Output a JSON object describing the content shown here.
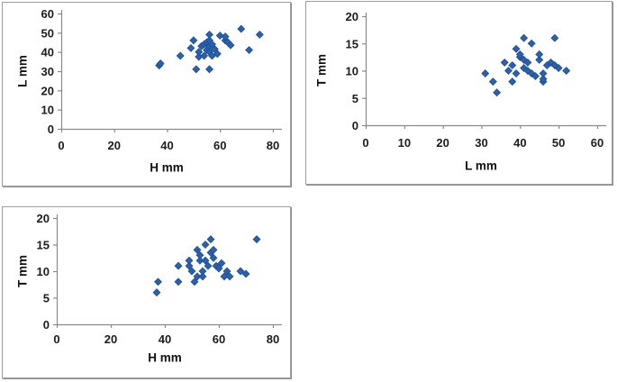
{
  "style": {
    "marker_fill": "#2a61ae",
    "marker_stroke": "#1e4e90",
    "axis_color": "#8a8a8a",
    "label_color": "#1c1c1c",
    "panel_border": "#9e9e9e",
    "background": "#ffffff"
  },
  "chart_data": [
    {
      "id": "l-vs-h",
      "type": "scatter",
      "title": "",
      "xlabel": "H mm",
      "ylabel": "L mm",
      "xlim": [
        0,
        80
      ],
      "ylim": [
        0,
        60
      ],
      "xticks": [
        0,
        20,
        40,
        60,
        80
      ],
      "yticks": [
        0,
        10,
        20,
        30,
        40,
        50,
        60
      ],
      "legend": "none",
      "grid": false,
      "points": [
        [
          37,
          33
        ],
        [
          37.5,
          34
        ],
        [
          45,
          38
        ],
        [
          49,
          42
        ],
        [
          50,
          46
        ],
        [
          51,
          31
        ],
        [
          52,
          37.5
        ],
        [
          52,
          40
        ],
        [
          53,
          43
        ],
        [
          54,
          38
        ],
        [
          54,
          44
        ],
        [
          55,
          41
        ],
        [
          55,
          45
        ],
        [
          56,
          31
        ],
        [
          56,
          40
        ],
        [
          56,
          43
        ],
        [
          56,
          46
        ],
        [
          56,
          49
        ],
        [
          57,
          38
        ],
        [
          57,
          44
        ],
        [
          58,
          41.5
        ],
        [
          59,
          39
        ],
        [
          60,
          48.5
        ],
        [
          62,
          46
        ],
        [
          62,
          48
        ],
        [
          63,
          45
        ],
        [
          64,
          43.5
        ],
        [
          68,
          52
        ],
        [
          71,
          41
        ],
        [
          75,
          49
        ]
      ]
    },
    {
      "id": "t-vs-l",
      "type": "scatter",
      "title": "",
      "xlabel": "L mm",
      "ylabel": "T mm",
      "xlim": [
        0,
        60
      ],
      "ylim": [
        0,
        20
      ],
      "xticks": [
        0,
        10,
        20,
        30,
        40,
        50,
        60
      ],
      "yticks": [
        0,
        5,
        10,
        15,
        20
      ],
      "legend": "none",
      "grid": false,
      "points": [
        [
          31,
          9.5
        ],
        [
          33,
          8
        ],
        [
          34,
          6
        ],
        [
          36,
          11.5
        ],
        [
          37,
          10
        ],
        [
          38,
          8
        ],
        [
          38,
          11
        ],
        [
          39,
          9.5
        ],
        [
          39,
          14
        ],
        [
          40,
          12.5
        ],
        [
          40,
          13
        ],
        [
          41,
          10.5
        ],
        [
          41,
          12
        ],
        [
          41,
          16
        ],
        [
          42,
          10
        ],
        [
          42,
          11.5
        ],
        [
          43,
          9.5
        ],
        [
          43,
          15
        ],
        [
          44,
          9
        ],
        [
          45,
          12
        ],
        [
          45,
          13
        ],
        [
          46,
          8
        ],
        [
          46,
          8.5
        ],
        [
          46,
          9.5
        ],
        [
          47,
          11
        ],
        [
          48,
          11.5
        ],
        [
          49,
          11
        ],
        [
          49,
          16
        ],
        [
          50,
          10.5
        ],
        [
          52,
          10
        ]
      ]
    },
    {
      "id": "t-vs-h",
      "type": "scatter",
      "title": "",
      "xlabel": "H mm",
      "ylabel": "T mm",
      "xlim": [
        0,
        80
      ],
      "ylim": [
        0,
        20
      ],
      "xticks": [
        0,
        20,
        40,
        60,
        80
      ],
      "yticks": [
        0,
        5,
        10,
        15,
        20
      ],
      "legend": "none",
      "grid": false,
      "points": [
        [
          37,
          6
        ],
        [
          37.5,
          8
        ],
        [
          45,
          8
        ],
        [
          45,
          11
        ],
        [
          49,
          11
        ],
        [
          49,
          12
        ],
        [
          50,
          10
        ],
        [
          51,
          8
        ],
        [
          52,
          9
        ],
        [
          52,
          14
        ],
        [
          53,
          12
        ],
        [
          53,
          13
        ],
        [
          54,
          9
        ],
        [
          54,
          10
        ],
        [
          55,
          12
        ],
        [
          55,
          15
        ],
        [
          56,
          11
        ],
        [
          57,
          13.5
        ],
        [
          57,
          16
        ],
        [
          58,
          12.5
        ],
        [
          58,
          14
        ],
        [
          59,
          11
        ],
        [
          60,
          10.5
        ],
        [
          61,
          11.5
        ],
        [
          62,
          9
        ],
        [
          63,
          10
        ],
        [
          64,
          9
        ],
        [
          68,
          10
        ],
        [
          70,
          9.5
        ],
        [
          74,
          16
        ]
      ]
    }
  ]
}
